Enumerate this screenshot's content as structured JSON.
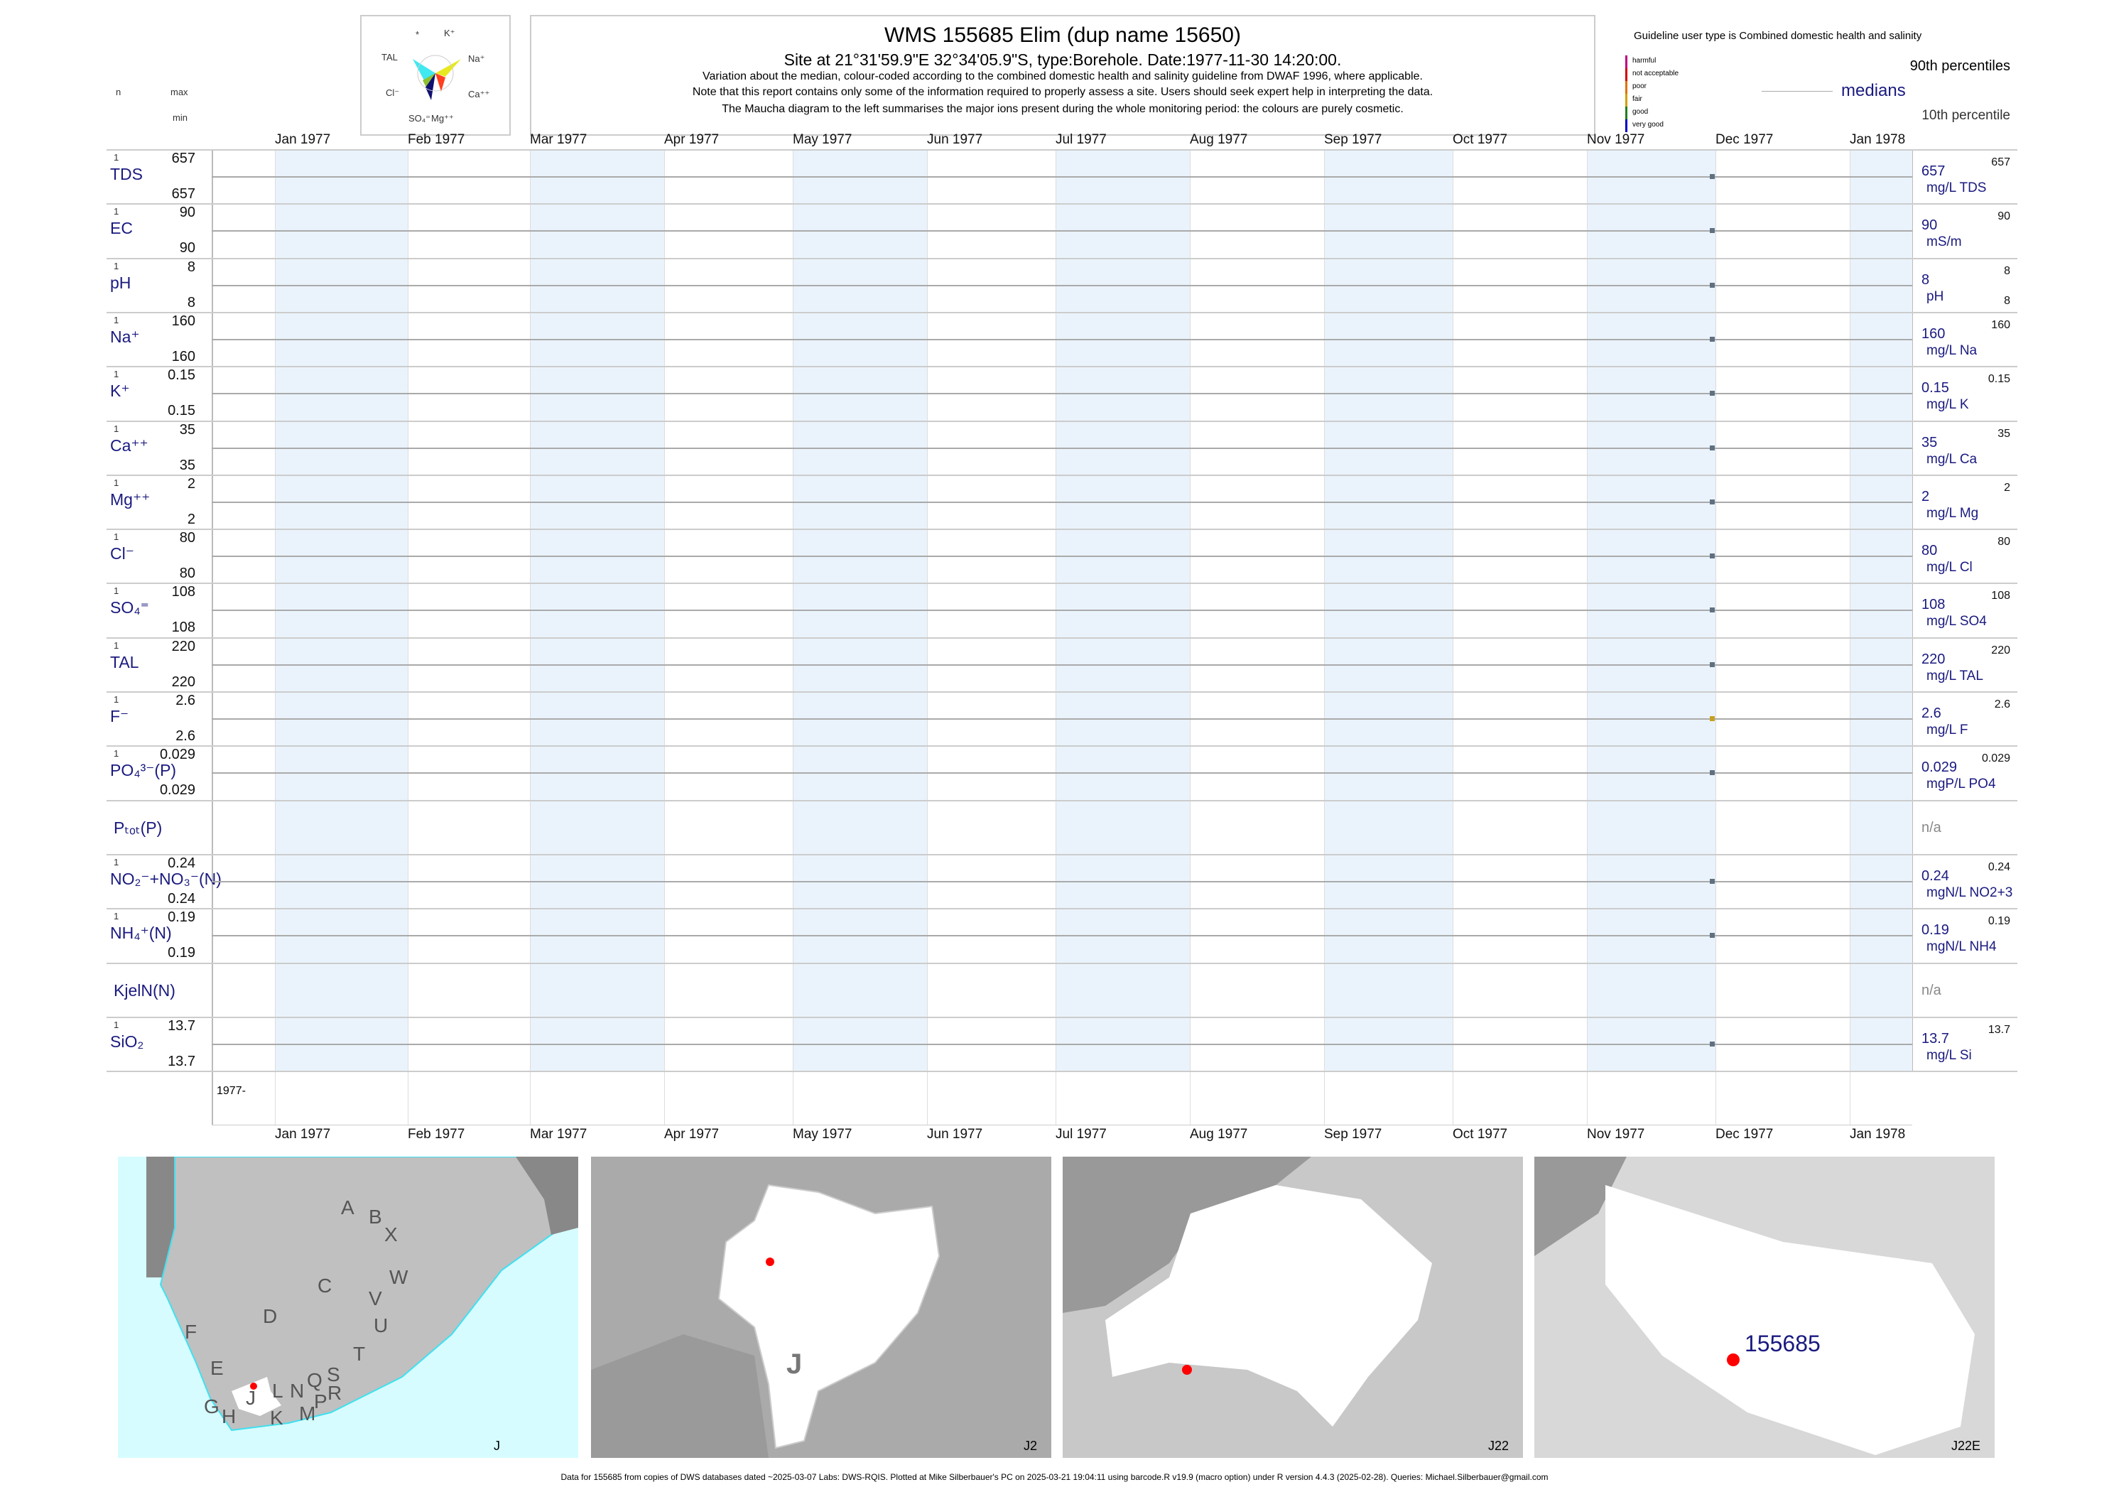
{
  "header": {
    "title": "WMS 155685  Elim (dup name 15650)",
    "subtitle": "Site at 21°31'59.9\"E 32°34'05.9\"S, type:Borehole. Date:1977-11-30 14:20:00.",
    "note1": "Variation about the median,  colour-coded according to the combined domestic health and salinity guideline from DWAF 1996, where applicable.",
    "note2": "Note that this report contains only some of the information required to properly assess a site. Users should seek expert help in interpreting the data.",
    "note3": "The Maucha diagram to the left summarises the major ions present during the whole monitoring period: the colours are purely cosmetic."
  },
  "maucha": {
    "labels": [
      "*",
      "K⁺",
      "TAL",
      "Na⁺",
      "Cl⁻",
      "Ca⁺⁺",
      "SO₄⁼",
      "Mg⁺⁺"
    ],
    "colors": {
      "TAL": "#40e8f0",
      "Na": "#e8e820",
      "Cl": "#90c030",
      "SO4": "#101070",
      "Ca": "#ff4020",
      "Mg": "#d0d0d0"
    }
  },
  "legend": {
    "guideline": "Guideline user type is Combined domestic health and salinity",
    "classes": [
      {
        "label": "harmful",
        "color": "#c00080"
      },
      {
        "label": "not acceptable",
        "color": "#d00000"
      },
      {
        "label": "poor",
        "color": "#e07000"
      },
      {
        "label": "fair",
        "color": "#d0a000"
      },
      {
        "label": "good",
        "color": "#208020"
      },
      {
        "label": "very good",
        "color": "#0000c0"
      }
    ],
    "p90": "90th percentiles",
    "medians": "medians",
    "p10": "10th percentile"
  },
  "left_header": {
    "n": "n",
    "max": "max",
    "min": "min"
  },
  "chart_data": {
    "type": "scatter",
    "x_ticks": [
      "Jan 1977",
      "Feb 1977",
      "Mar 1977",
      "Apr 1977",
      "May 1977",
      "Jun 1977",
      "Jul 1977",
      "Aug 1977",
      "Sep 1977",
      "Oct 1977",
      "Nov 1977",
      "Dec 1977",
      "Jan 1978"
    ],
    "sample_date": "1977-11-30",
    "year_label": "1977-",
    "grid": true,
    "rows": [
      {
        "param": "TDS",
        "n": "1",
        "max": "657",
        "min": "657",
        "median": "657",
        "unit": "mg/L TDS",
        "p90": "657",
        "p10": "",
        "value": 657,
        "color": "#607080"
      },
      {
        "param": "EC",
        "n": "1",
        "max": "90",
        "min": "90",
        "median": "90",
        "unit": "mS/m",
        "p90": "90",
        "p10": "",
        "value": 90,
        "color": "#607080"
      },
      {
        "param": "pH",
        "n": "1",
        "max": "8",
        "min": "8",
        "median": "8",
        "unit": "pH",
        "p90": "8",
        "p10": "8",
        "value": 8,
        "color": "#607080"
      },
      {
        "param": "Na⁺",
        "n": "1",
        "max": "160",
        "min": "160",
        "median": "160",
        "unit": "mg/L Na",
        "p90": "160",
        "p10": "",
        "value": 160,
        "color": "#607080"
      },
      {
        "param": "K⁺",
        "n": "1",
        "max": "0.15",
        "min": "0.15",
        "median": "0.15",
        "unit": "mg/L K",
        "p90": "0.15",
        "p10": "",
        "value": 0.15,
        "color": "#607080"
      },
      {
        "param": "Ca⁺⁺",
        "n": "1",
        "max": "35",
        "min": "35",
        "median": "35",
        "unit": "mg/L Ca",
        "p90": "35",
        "p10": "",
        "value": 35,
        "color": "#607080"
      },
      {
        "param": "Mg⁺⁺",
        "n": "1",
        "max": "2",
        "min": "2",
        "median": "2",
        "unit": "mg/L Mg",
        "p90": "2",
        "p10": "",
        "value": 2,
        "color": "#607080"
      },
      {
        "param": "Cl⁻",
        "n": "1",
        "max": "80",
        "min": "80",
        "median": "80",
        "unit": "mg/L Cl",
        "p90": "80",
        "p10": "",
        "value": 80,
        "color": "#607080"
      },
      {
        "param": "SO₄⁼",
        "n": "1",
        "max": "108",
        "min": "108",
        "median": "108",
        "unit": "mg/L SO4",
        "p90": "108",
        "p10": "",
        "value": 108,
        "color": "#607080"
      },
      {
        "param": "TAL",
        "n": "1",
        "max": "220",
        "min": "220",
        "median": "220",
        "unit": "mg/L TAL",
        "p90": "220",
        "p10": "",
        "value": 220,
        "color": "#607080"
      },
      {
        "param": "F⁻",
        "n": "1",
        "max": "2.6",
        "min": "2.6",
        "median": "2.6",
        "unit": "mg/L F",
        "p90": "2.6",
        "p10": "",
        "value": 2.6,
        "color": "#c8a020"
      },
      {
        "param": "PO₄³⁻(P)",
        "n": "1",
        "max": "0.029",
        "min": "0.029",
        "median": "0.029",
        "unit": "mgP/L PO4",
        "p90": "0.029",
        "p10": "",
        "value": 0.029,
        "color": "#607080"
      },
      {
        "param": "Pₜₒₜ(P)",
        "n": "",
        "max": "",
        "min": "",
        "median": "n/a",
        "unit": "",
        "p90": "",
        "p10": "",
        "value": null
      },
      {
        "param": "NO₂⁻+NO₃⁻(N)",
        "n": "1",
        "max": "0.24",
        "min": "0.24",
        "median": "0.24",
        "unit": "mgN/L NO2+3",
        "p90": "0.24",
        "p10": "",
        "value": 0.24,
        "color": "#607080"
      },
      {
        "param": "NH₄⁺(N)",
        "n": "1",
        "max": "0.19",
        "min": "0.19",
        "median": "0.19",
        "unit": "mgN/L NH4",
        "p90": "0.19",
        "p10": "",
        "value": 0.19,
        "color": "#607080"
      },
      {
        "param": "KjelN(N)",
        "n": "",
        "max": "",
        "min": "",
        "median": "n/a",
        "unit": "",
        "p90": "",
        "p10": "",
        "value": null
      },
      {
        "param": "SiO₂",
        "n": "1",
        "max": "13.7",
        "min": "13.7",
        "median": "13.7",
        "unit": "mg/L Si",
        "p90": "13.7",
        "p10": "",
        "value": 13.7,
        "color": "#607080"
      }
    ]
  },
  "maps": [
    {
      "caption": "J",
      "letters": [
        "A",
        "B",
        "X",
        "W",
        "C",
        "V",
        "U",
        "D",
        "T",
        "F",
        "E",
        "S",
        "R",
        "Q",
        "N",
        "L",
        "M",
        "P",
        "K",
        "J",
        "H",
        "G"
      ]
    },
    {
      "caption": "J2",
      "label": "J"
    },
    {
      "caption": "J22"
    },
    {
      "caption": "J22E",
      "site": "155685"
    }
  ],
  "footer": "Data for 155685 from copies of DWS databases dated ~2025-03-07 Labs: DWS-RQIS. Plotted at Mike Silberbauer's PC on 2025-03-21 19:04:11 using barcode.R v19.9 (macro option) under R version 4.4.3 (2025-02-28). Queries: Michael.Silberbauer@gmail.com"
}
